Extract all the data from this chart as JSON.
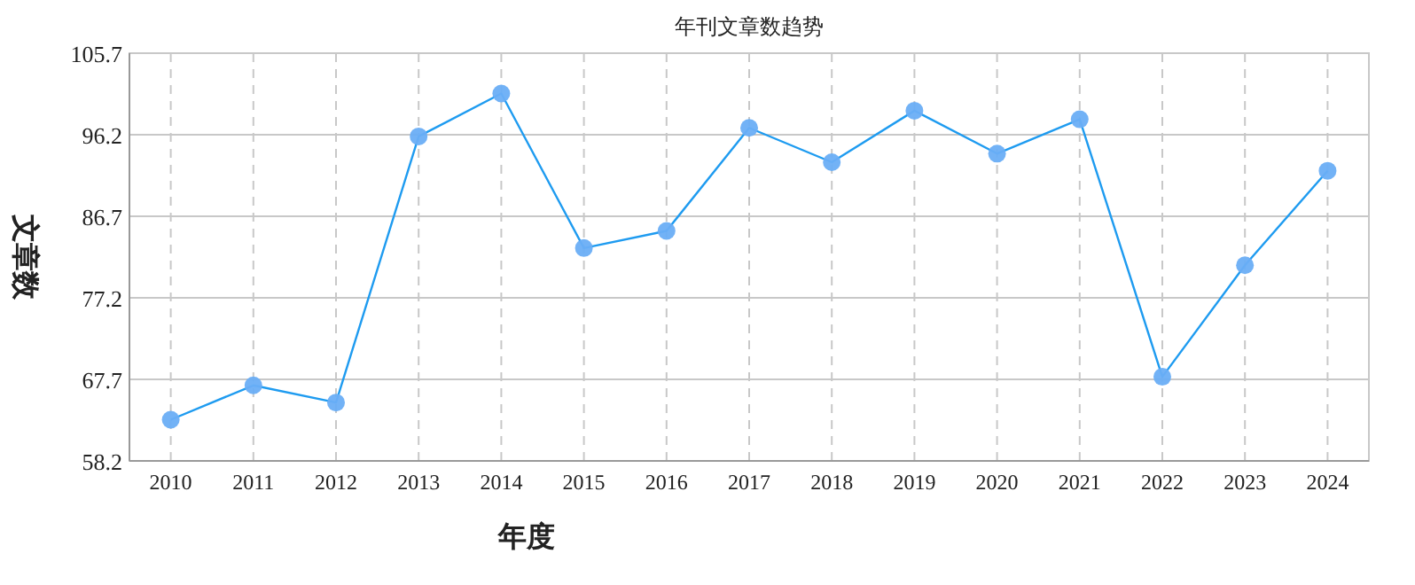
{
  "chart_data": {
    "type": "line",
    "title": "年刊文章数趋势",
    "xlabel": "年度",
    "ylabel": "文章数",
    "categories": [
      "2010",
      "2011",
      "2012",
      "2013",
      "2014",
      "2015",
      "2016",
      "2017",
      "2018",
      "2019",
      "2020",
      "2021",
      "2022",
      "2023",
      "2024"
    ],
    "series": [
      {
        "color": "#1e9bf0",
        "values": [
          63,
          67,
          65,
          96,
          101,
          83,
          85,
          97,
          93,
          99,
          94,
          98,
          68,
          81,
          92
        ]
      }
    ],
    "ylim": [
      58.2,
      105.7
    ],
    "yticks": [
      58.2,
      67.7,
      77.2,
      86.7,
      96.2,
      105.7
    ],
    "grid": true,
    "marker": "circle",
    "line_style": "solid"
  }
}
